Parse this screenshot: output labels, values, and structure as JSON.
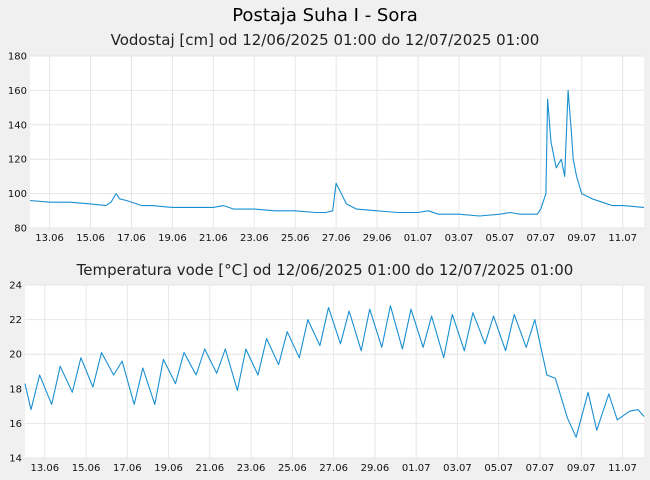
{
  "page_title": "Postaja Suha I - Sora",
  "series_color": "#1a8fd0",
  "chart_data": [
    {
      "type": "line",
      "title": "Vodostaj [cm] od 12/06/2025 01:00 do 12/07/2025 01:00",
      "x_start": "2025-06-12T01:00",
      "x_end": "2025-07-12T01:00",
      "ylim": [
        80,
        180
      ],
      "yticks": [
        80,
        100,
        120,
        140,
        160,
        180
      ],
      "xtick_dates": [
        "2025-06-13",
        "2025-06-15",
        "2025-06-17",
        "2025-06-19",
        "2025-06-21",
        "2025-06-23",
        "2025-06-25",
        "2025-06-27",
        "2025-06-29",
        "2025-07-01",
        "2025-07-03",
        "2025-07-05",
        "2025-07-07",
        "2025-07-09",
        "2025-07-11"
      ],
      "xtick_labels": [
        "13.06",
        "15.06",
        "17.06",
        "19.06",
        "21.06",
        "23.06",
        "25.06",
        "27.06",
        "29.06",
        "01.07",
        "03.07",
        "05.07",
        "07.07",
        "09.07",
        "11.07"
      ],
      "grid": true,
      "series": [
        {
          "x": [
            "2025-06-12T01:00",
            "2025-06-13T00:00",
            "2025-06-14T00:00",
            "2025-06-15T00:00",
            "2025-06-15T18:00",
            "2025-06-16T00:00",
            "2025-06-16T06:00",
            "2025-06-16T10:00",
            "2025-06-16T18:00",
            "2025-06-17T06:00",
            "2025-06-17T12:00",
            "2025-06-18T00:00",
            "2025-06-19T00:00",
            "2025-06-20T00:00",
            "2025-06-21T00:00",
            "2025-06-21T12:00",
            "2025-06-22T00:00",
            "2025-06-23T00:00",
            "2025-06-24T00:00",
            "2025-06-25T00:00",
            "2025-06-26T00:00",
            "2025-06-26T12:00",
            "2025-06-26T20:00",
            "2025-06-27T00:00",
            "2025-06-27T06:00",
            "2025-06-27T12:00",
            "2025-06-28T00:00",
            "2025-06-29T00:00",
            "2025-06-30T00:00",
            "2025-07-01T00:00",
            "2025-07-01T12:00",
            "2025-07-02T00:00",
            "2025-07-03T00:00",
            "2025-07-04T00:00",
            "2025-07-05T00:00",
            "2025-07-05T12:00",
            "2025-07-06T00:00",
            "2025-07-06T20:00",
            "2025-07-07T00:00",
            "2025-07-07T06:00",
            "2025-07-07T08:00",
            "2025-07-07T12:00",
            "2025-07-07T18:00",
            "2025-07-08T00:00",
            "2025-07-08T04:00",
            "2025-07-08T08:00",
            "2025-07-08T12:00",
            "2025-07-08T14:00",
            "2025-07-08T18:00",
            "2025-07-09T00:00",
            "2025-07-09T12:00",
            "2025-07-10T00:00",
            "2025-07-10T12:00",
            "2025-07-11T00:00",
            "2025-07-12T01:00"
          ],
          "y": [
            96,
            95,
            95,
            94,
            93,
            95,
            100,
            97,
            96,
            94,
            93,
            93,
            92,
            92,
            92,
            93,
            91,
            91,
            90,
            90,
            89,
            89,
            90,
            106,
            100,
            94,
            91,
            90,
            89,
            89,
            90,
            88,
            88,
            87,
            88,
            89,
            88,
            88,
            91,
            100,
            155,
            130,
            115,
            120,
            110,
            160,
            135,
            120,
            110,
            100,
            97,
            95,
            93,
            93,
            92
          ]
        }
      ]
    },
    {
      "type": "line",
      "title": "Temperatura vode [°C] od 12/06/2025 01:00 do 12/07/2025 01:00",
      "x_start": "2025-06-12T01:00",
      "x_end": "2025-07-12T01:00",
      "ylim": [
        14,
        24
      ],
      "yticks": [
        14,
        16,
        18,
        20,
        22,
        24
      ],
      "xtick_dates": [
        "2025-06-13",
        "2025-06-15",
        "2025-06-17",
        "2025-06-19",
        "2025-06-21",
        "2025-06-23",
        "2025-06-25",
        "2025-06-27",
        "2025-06-29",
        "2025-07-01",
        "2025-07-03",
        "2025-07-05",
        "2025-07-07",
        "2025-07-09",
        "2025-07-11"
      ],
      "xtick_labels": [
        "13.06",
        "15.06",
        "17.06",
        "19.06",
        "21.06",
        "23.06",
        "25.06",
        "27.06",
        "29.06",
        "01.07",
        "03.07",
        "05.07",
        "07.07",
        "09.07",
        "11.07"
      ],
      "grid": true,
      "series": [
        {
          "x": [
            "2025-06-12T01:00",
            "2025-06-12T08:00",
            "2025-06-12T18:00",
            "2025-06-13T08:00",
            "2025-06-13T18:00",
            "2025-06-14T08:00",
            "2025-06-14T18:00",
            "2025-06-15T08:00",
            "2025-06-15T18:00",
            "2025-06-16T08:00",
            "2025-06-16T18:00",
            "2025-06-17T08:00",
            "2025-06-17T18:00",
            "2025-06-18T08:00",
            "2025-06-18T18:00",
            "2025-06-19T08:00",
            "2025-06-19T18:00",
            "2025-06-20T08:00",
            "2025-06-20T18:00",
            "2025-06-21T08:00",
            "2025-06-21T18:00",
            "2025-06-22T08:00",
            "2025-06-22T18:00",
            "2025-06-23T08:00",
            "2025-06-23T18:00",
            "2025-06-24T08:00",
            "2025-06-24T18:00",
            "2025-06-25T08:00",
            "2025-06-25T18:00",
            "2025-06-26T08:00",
            "2025-06-26T18:00",
            "2025-06-27T08:00",
            "2025-06-27T18:00",
            "2025-06-28T08:00",
            "2025-06-28T18:00",
            "2025-06-29T08:00",
            "2025-06-29T18:00",
            "2025-06-30T08:00",
            "2025-06-30T18:00",
            "2025-07-01T08:00",
            "2025-07-01T18:00",
            "2025-07-02T08:00",
            "2025-07-02T18:00",
            "2025-07-03T08:00",
            "2025-07-03T18:00",
            "2025-07-04T08:00",
            "2025-07-04T18:00",
            "2025-07-05T08:00",
            "2025-07-05T18:00",
            "2025-07-06T08:00",
            "2025-07-06T18:00",
            "2025-07-07T08:00",
            "2025-07-07T18:00",
            "2025-07-08T08:00",
            "2025-07-08T18:00",
            "2025-07-09T08:00",
            "2025-07-09T18:00",
            "2025-07-10T08:00",
            "2025-07-10T18:00",
            "2025-07-11T08:00",
            "2025-07-11T18:00",
            "2025-07-12T01:00"
          ],
          "y": [
            18.3,
            16.8,
            18.8,
            17.1,
            19.3,
            17.8,
            19.8,
            18.1,
            20.1,
            18.8,
            19.6,
            17.1,
            19.2,
            17.1,
            19.7,
            18.3,
            20.1,
            18.8,
            20.3,
            18.9,
            20.3,
            17.9,
            20.3,
            18.8,
            20.9,
            19.4,
            21.3,
            19.8,
            22.0,
            20.5,
            22.7,
            20.6,
            22.5,
            20.2,
            22.6,
            20.4,
            22.8,
            20.3,
            22.6,
            20.4,
            22.2,
            19.8,
            22.3,
            20.2,
            22.4,
            20.6,
            22.2,
            20.2,
            22.3,
            20.4,
            22.0,
            18.8,
            18.6,
            16.3,
            15.2,
            17.8,
            15.6,
            17.7,
            16.2,
            16.7,
            16.8,
            16.4
          ]
        }
      ]
    }
  ]
}
